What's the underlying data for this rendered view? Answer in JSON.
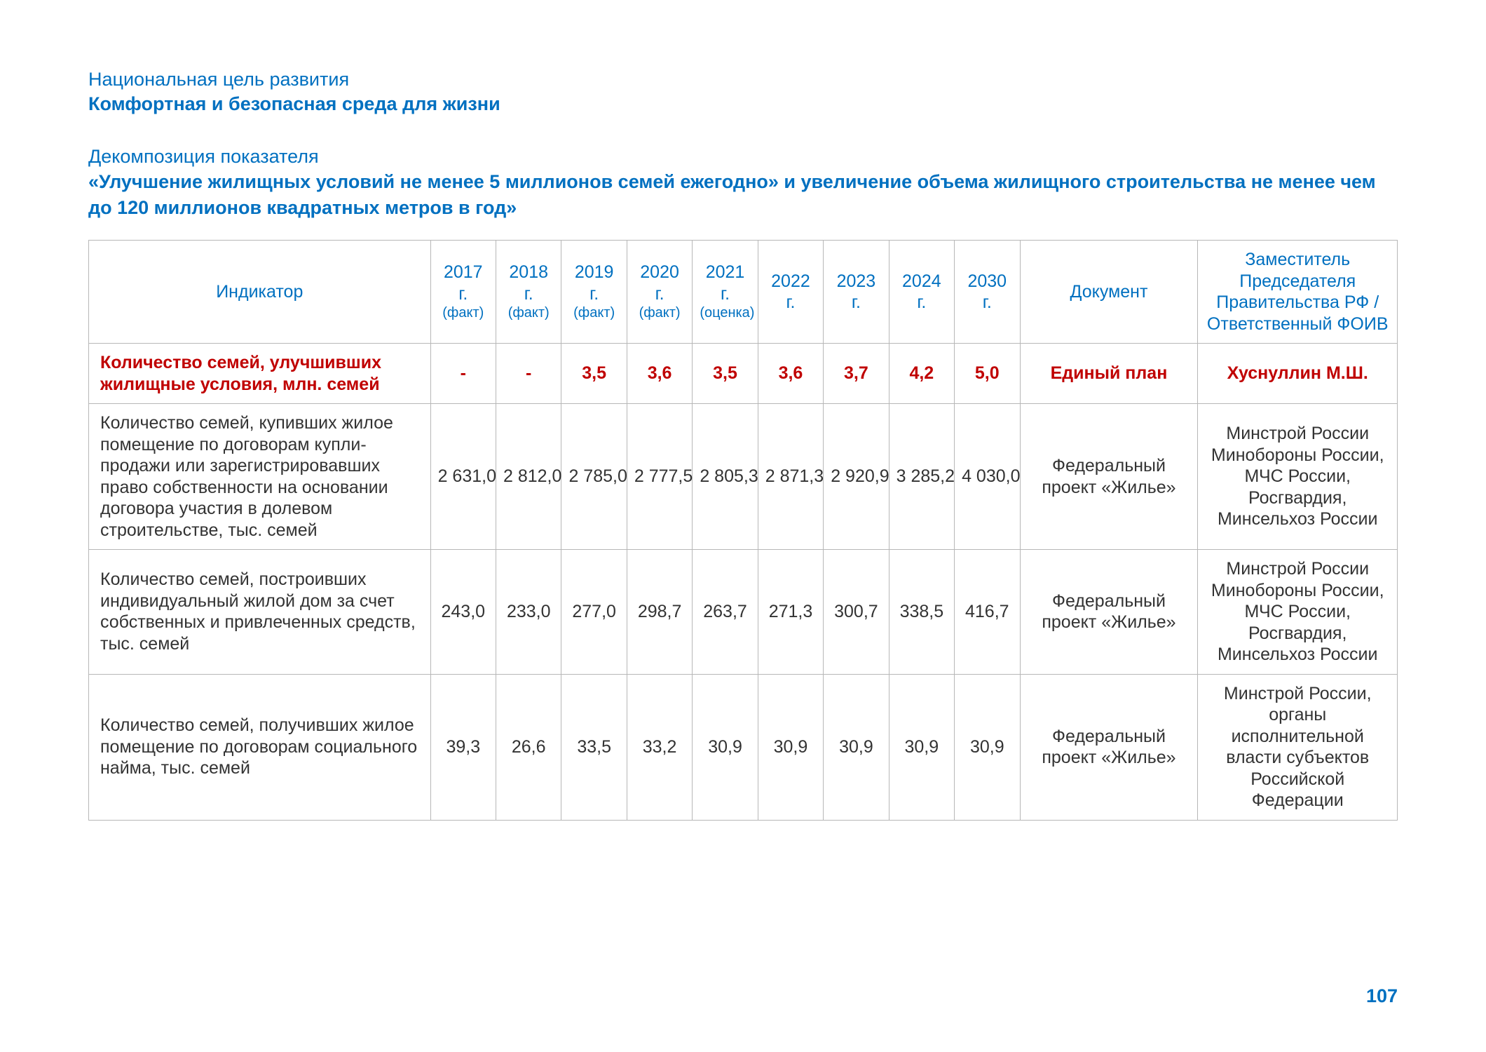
{
  "header": {
    "goal_label": "Национальная цель развития",
    "goal_title": "Комфортная и безопасная среда для жизни",
    "decomp_label": "Декомпозиция показателя",
    "decomp_title": "«Улучшение жилищных условий не менее 5 миллионов семей ежегодно» и увеличение объема жилищного строительства не менее чем до 120 миллионов квадратных метров в год»"
  },
  "table": {
    "columns": [
      {
        "label": "Индикатор",
        "sub": ""
      },
      {
        "label": "2017 г.",
        "sub": "(факт)"
      },
      {
        "label": "2018 г.",
        "sub": "(факт)"
      },
      {
        "label": "2019 г.",
        "sub": "(факт)"
      },
      {
        "label": "2020 г.",
        "sub": "(факт)"
      },
      {
        "label": "2021 г.",
        "sub": "(оценка)"
      },
      {
        "label": "2022 г.",
        "sub": ""
      },
      {
        "label": "2023 г.",
        "sub": ""
      },
      {
        "label": "2024 г.",
        "sub": ""
      },
      {
        "label": "2030 г.",
        "sub": ""
      },
      {
        "label": "Документ",
        "sub": ""
      },
      {
        "label": "Заместитель Председателя Правительства РФ / Ответственный ФОИВ",
        "sub": ""
      }
    ],
    "rows": [
      {
        "highlight": true,
        "indicator": "Количество семей, улучшивших жилищные условия, млн. семей",
        "values": [
          "-",
          "-",
          "3,5",
          "3,6",
          "3,5",
          "3,6",
          "3,7",
          "4,2",
          "5,0"
        ],
        "doc": "Единый план",
        "responsible": "Хуснуллин М.Ш."
      },
      {
        "highlight": false,
        "indicator": "Количество семей, купивших жилое помещение по договорам купли-продажи или зарегистрировавших право собственности на основании договора участия в долевом строительстве, тыс. семей",
        "values": [
          "2 631,0",
          "2 812,0",
          "2 785,0",
          "2 777,5",
          "2 805,3",
          "2 871,3",
          "2 920,9",
          "3 285,2",
          "4 030,0"
        ],
        "doc": "Федеральный проект «Жилье»",
        "responsible": "Минстрой России Минобороны России, МЧС России, Росгвардия, Минсельхоз России"
      },
      {
        "highlight": false,
        "indicator": "Количество семей, построивших индивидуальный жилой дом за счет собственных и привлеченных средств, тыс. семей",
        "values": [
          "243,0",
          "233,0",
          "277,0",
          "298,7",
          "263,7",
          "271,3",
          "300,7",
          "338,5",
          "416,7"
        ],
        "doc": "Федеральный проект «Жилье»",
        "responsible": "Минстрой России Минобороны России, МЧС России, Росгвардия, Минсельхоз России"
      },
      {
        "highlight": false,
        "indicator": "Количество семей, получивших жилое помещение по договорам социального найма, тыс. семей",
        "values": [
          "39,3",
          "26,6",
          "33,5",
          "33,2",
          "30,9",
          "30,9",
          "30,9",
          "30,9",
          "30,9"
        ],
        "doc": "Федеральный проект «Жилье»",
        "responsible": "Минстрой России, органы исполнительной власти субъектов Российской Федерации"
      }
    ]
  },
  "page_number": "107",
  "colors": {
    "accent": "#0070c0",
    "highlight": "#c00000",
    "border": "#b7b7b7",
    "text": "#333333",
    "background": "#ffffff"
  }
}
